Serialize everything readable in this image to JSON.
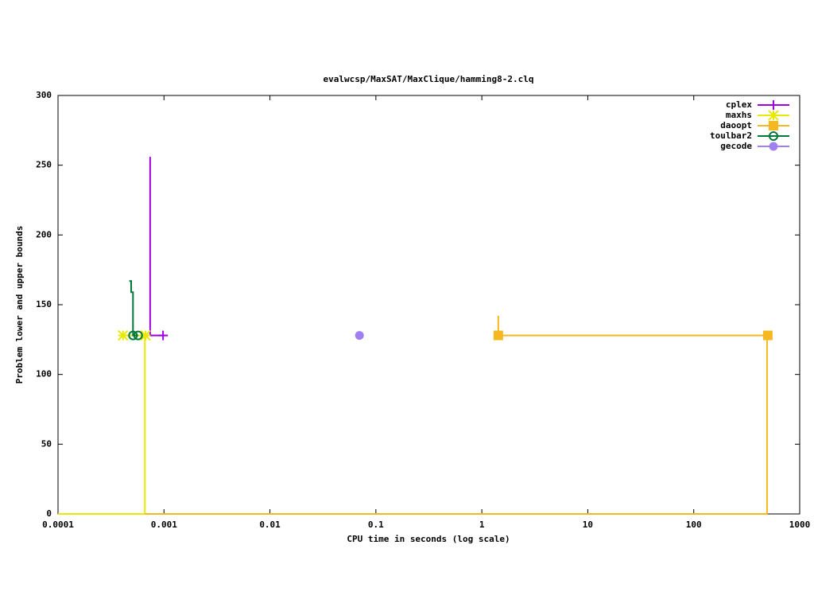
{
  "chart_data": {
    "type": "step",
    "title": "evalwcsp/MaxSAT/MaxClique/hamming8-2.clq",
    "x_label": "CPU time in seconds (log scale)",
    "y_label": "Problem lower and upper bounds",
    "xscale": "log",
    "xlim": [
      0.0001,
      1000
    ],
    "xticks": [
      0.0001,
      0.001,
      0.01,
      0.1,
      1,
      10,
      100,
      1000
    ],
    "ylim": [
      0,
      300
    ],
    "yticks": [
      0,
      50,
      100,
      150,
      200,
      250,
      300
    ],
    "legend": "top-right",
    "series": [
      {
        "name": "cplex",
        "color": "#a000e0",
        "marker": "plus",
        "upper": {
          "x": [
            0.00074,
            0.00074,
            0.00098
          ],
          "values": [
            256,
            128,
            128
          ]
        },
        "points": {
          "x": [
            0.00098
          ],
          "values": [
            128
          ]
        }
      },
      {
        "name": "maxhs",
        "color": "#e8e800",
        "marker": "star",
        "upper": {
          "x": [
            0.00041,
            0.00067
          ],
          "values": [
            128,
            128
          ]
        },
        "lower": {
          "x": [
            0.0001,
            0.00066,
            0.00066
          ],
          "values": [
            0,
            0,
            128
          ]
        },
        "points": {
          "x": [
            0.00041,
            0.00067
          ],
          "values": [
            128,
            128
          ]
        }
      },
      {
        "name": "daoopt",
        "color": "#f5b820",
        "marker": "square",
        "upper": {
          "x": [
            1.43,
            1.43,
            500
          ],
          "values": [
            142,
            128,
            128
          ]
        },
        "lower": {
          "x": [
            0.00066,
            492,
            492
          ],
          "values": [
            0,
            0,
            128
          ]
        },
        "points": {
          "x": [
            1.43,
            500
          ],
          "values": [
            128,
            128
          ]
        }
      },
      {
        "name": "toulbar2",
        "color": "#007838",
        "marker": "circle",
        "upper": {
          "x": [
            0.00047,
            0.00049,
            0.00049,
            0.00051,
            0.00051,
            0.00057
          ],
          "values": [
            167,
            167,
            159,
            159,
            128,
            128
          ]
        },
        "points": {
          "x": [
            0.00051,
            0.00057
          ],
          "values": [
            128,
            128
          ]
        }
      },
      {
        "name": "gecode",
        "color": "#a080f0",
        "marker": "dot",
        "points": {
          "x": [
            0.07
          ],
          "values": [
            128
          ]
        }
      }
    ]
  }
}
